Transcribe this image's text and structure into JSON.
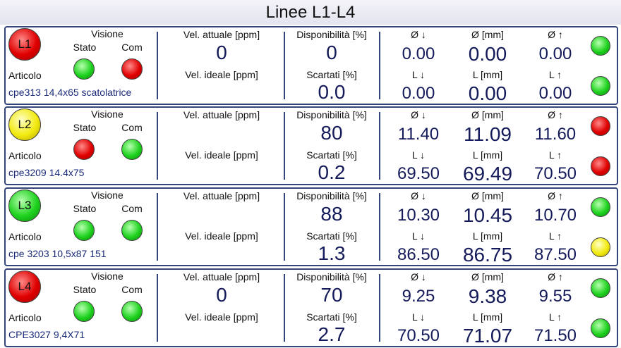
{
  "title": "Linee L1-L4",
  "labels": {
    "visione": "Visione",
    "stato": "Stato",
    "com": "Com",
    "articolo": "Articolo",
    "vel_attuale": "Vel. attuale [ppm]",
    "vel_ideale": "Vel. ideale [ppm]",
    "disponibilita": "Disponibilità [%]",
    "scartati": "Scartati [%]",
    "diam_min": "Ø ↓",
    "diam": "Ø [mm]",
    "diam_max": "Ø ↑",
    "len_min": "L ↓",
    "len": "L [mm]",
    "len_max": "L ↑"
  },
  "lines": [
    {
      "name": "L1",
      "color": "red",
      "stato": "green",
      "com": "red",
      "articolo": "cpe313 14,4x65 scatolatrice",
      "vel_attuale": "0",
      "disponibilita": "0",
      "scartati": "0.0",
      "diam_min": "0.00",
      "diam": "0.00",
      "diam_max": "0.00",
      "diam_status": "green",
      "len_min": "0.00",
      "len": "0.00",
      "len_max": "0.00",
      "len_status": "green"
    },
    {
      "name": "L2",
      "color": "yellow",
      "stato": "red",
      "com": "green",
      "articolo": "cpe3209 14.4x75",
      "disponibilita": "80",
      "scartati": "0.2",
      "diam_min": "11.40",
      "diam": "11.09",
      "diam_max": "11.60",
      "diam_status": "red",
      "len_min": "69.50",
      "len": "69.49",
      "len_max": "70.50",
      "len_status": "red"
    },
    {
      "name": "L3",
      "color": "green",
      "stato": "green",
      "com": "green",
      "articolo": "cpe 3203 10,5x87 151",
      "disponibilita": "88",
      "scartati": "1.3",
      "diam_min": "10.30",
      "diam": "10.45",
      "diam_max": "10.70",
      "diam_status": "green",
      "len_min": "86.50",
      "len": "86.75",
      "len_max": "87.50",
      "len_status": "yellow"
    },
    {
      "name": "L4",
      "color": "red",
      "stato": "green",
      "com": "green",
      "articolo": "CPE3027 9,4X71",
      "vel_attuale": "0",
      "disponibilita": "70",
      "scartati": "2.7",
      "diam_min": "9.25",
      "diam": "9.38",
      "diam_max": "9.55",
      "diam_status": "green",
      "len_min": "70.50",
      "len": "71.07",
      "len_max": "71.50",
      "len_status": "green"
    }
  ]
}
